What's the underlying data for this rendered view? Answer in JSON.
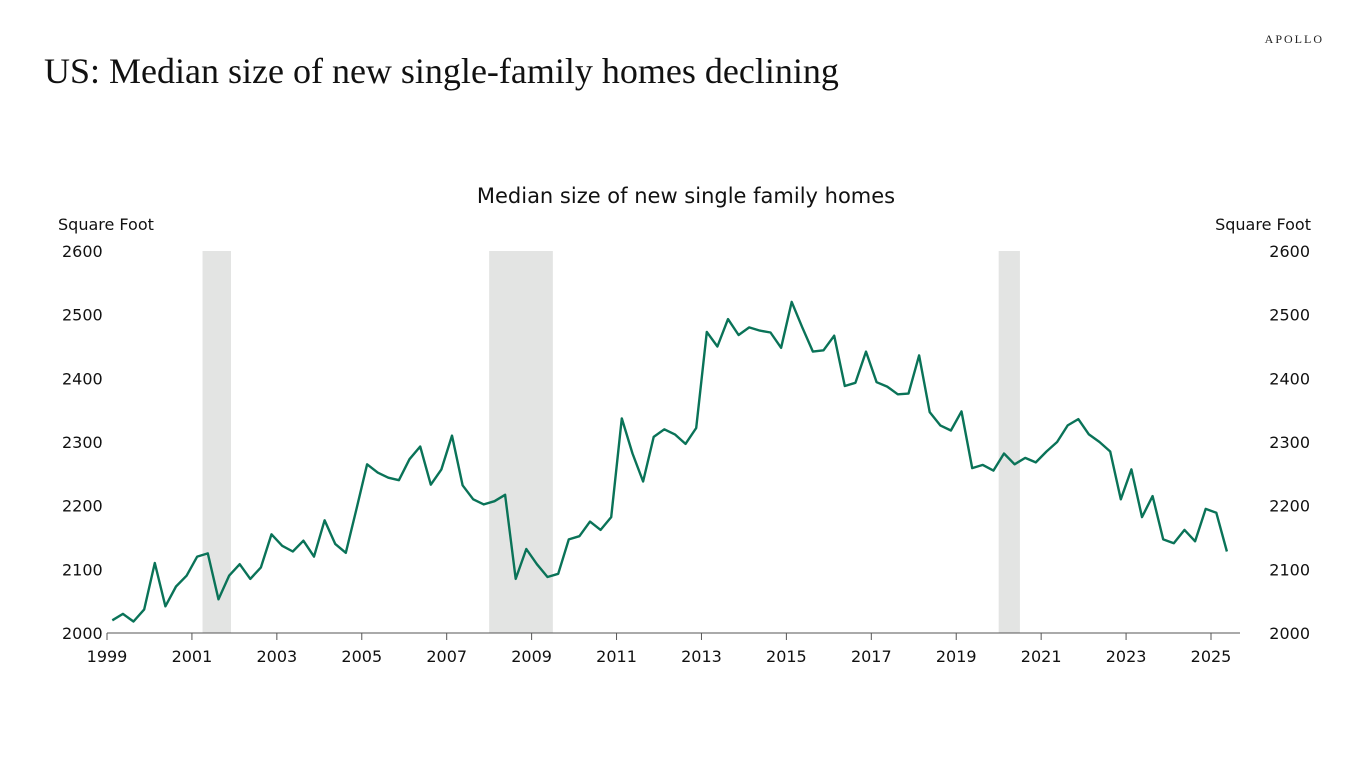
{
  "header": {
    "title": "US: Median size of new single-family homes declining",
    "logo": "APOLLO"
  },
  "chart_data": {
    "type": "line",
    "title": "Median size of new single family homes",
    "ylabel_left": "Square Foot",
    "ylabel_right": "Square Foot",
    "ylim": [
      2000,
      2600
    ],
    "yticks": [
      "2000",
      "2100",
      "2200",
      "2300",
      "2400",
      "2500",
      "2600"
    ],
    "xlim": [
      1999,
      2026
    ],
    "xticks": [
      "1999",
      "2001",
      "2003",
      "2005",
      "2007",
      "2009",
      "2011",
      "2013",
      "2015",
      "2017",
      "2019",
      "2021",
      "2023",
      "2025"
    ],
    "frequency": "quarterly",
    "start": "1999 Q1",
    "end": "2025 Q2",
    "line_color": "#0a7358",
    "recession_color": "#e3e4e3",
    "recessions": [
      [
        2001.25,
        2001.92
      ],
      [
        2008.0,
        2009.5
      ],
      [
        2020.0,
        2020.5
      ]
    ],
    "series": [
      {
        "values": [
          2020,
          2030,
          2018,
          2037,
          2110,
          2042,
          2073,
          2090,
          2120,
          2125,
          2053,
          2090,
          2108,
          2085,
          2103,
          2155,
          2137,
          2128,
          2145,
          2120,
          2177,
          2140,
          2126,
          2195,
          2265,
          2252,
          2244,
          2240,
          2273,
          2293,
          2233,
          2257,
          2310,
          2232,
          2210,
          2202,
          2207,
          2217,
          2085,
          2132,
          2108,
          2088,
          2093,
          2147,
          2152,
          2175,
          2162,
          2182,
          2337,
          2282,
          2238,
          2308,
          2320,
          2312,
          2297,
          2322,
          2473,
          2450,
          2493,
          2468,
          2480,
          2475,
          2472,
          2448,
          2520,
          2480,
          2442,
          2444,
          2467,
          2388,
          2393,
          2442,
          2394,
          2387,
          2375,
          2376,
          2436,
          2347,
          2326,
          2318,
          2348,
          2259,
          2264,
          2255,
          2282,
          2265,
          2275,
          2268,
          2285,
          2300,
          2326,
          2336,
          2312,
          2300,
          2285,
          2210,
          2257,
          2182,
          2215,
          2147,
          2141,
          2162,
          2144,
          2195,
          2189,
          2128
        ]
      }
    ]
  }
}
